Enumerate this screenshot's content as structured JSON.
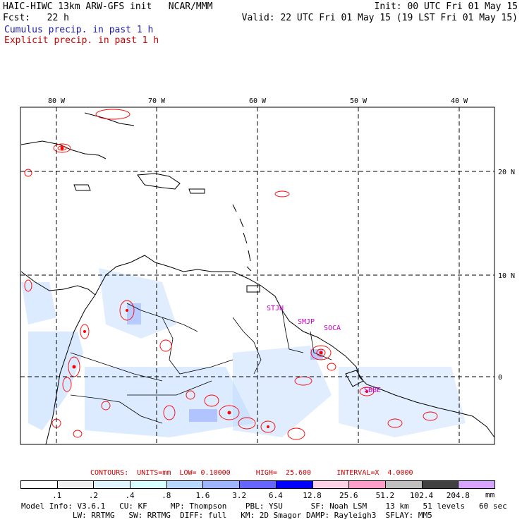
{
  "header": {
    "title": "HAIC-HIWC 13km ARW-GFS init   NCAR/MMM",
    "init": "Init: 00 UTC Fri 01 May 15",
    "fcst": "Fcst:   22 h",
    "valid": "Valid: 22 UTC Fri 01 May 15 (19 LST Fri 01 May 15)",
    "legend_cumulus": "Cumulus precip. in past 1 h",
    "legend_explicit": "Explicit precip. in past 1 h"
  },
  "map": {
    "lon_labels": [
      "80 W",
      "70 W",
      "60 W",
      "50 W",
      "40 W"
    ],
    "lat_labels": [
      "20 N",
      "10 N",
      "0"
    ],
    "station_labels": [
      "STJN",
      "SMJP",
      "SOCA",
      "SBBE"
    ],
    "colors": {
      "coast": "#000000",
      "grid": "#000000",
      "explicit_contour": "#ff0000",
      "station": "#cc00cc"
    }
  },
  "contours_line": "CONTOURS:  UNITS=mm  LOW= 0.10000      HIGH=  25.600      INTERVAL=X  4.0000",
  "colorbar": {
    "unit": "mm",
    "labels": [
      ".1",
      ".2",
      ".4",
      ".8",
      "1.6",
      "3.2",
      "6.4",
      "12.8",
      "25.6",
      "51.2",
      "102.4",
      "204.8"
    ],
    "colors": [
      "#ffffff",
      "#f0f0f0",
      "#e0f4ff",
      "#d8ffff",
      "#b9d8ff",
      "#9fb4ff",
      "#6666ff",
      "#0000ff",
      "#ffd2e6",
      "#ff9ec8",
      "#c0c0c0",
      "#404040",
      "#d7a5ff"
    ]
  },
  "model_info": {
    "line1": "Model Info: V3.6.1   CU: KF     MP: Thompson    PBL: YSU      SF: Noah LSM    13 km   51 levels   60 sec",
    "line2": "           LW: RRTMG   SW: RRTMG  DIFF: full   KM: 2D Smagor DAMP: Rayleigh3  SFLAY: MM5"
  }
}
